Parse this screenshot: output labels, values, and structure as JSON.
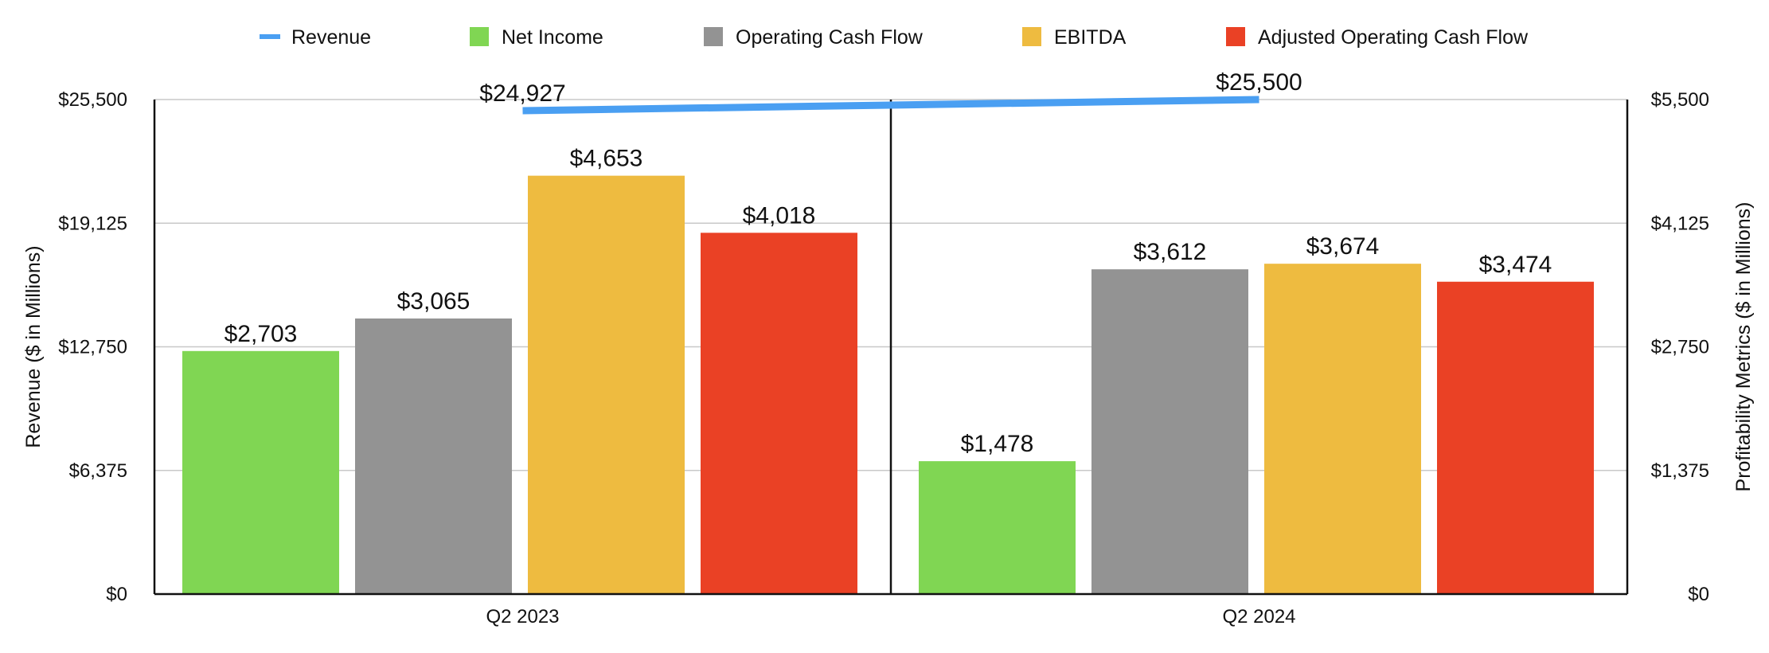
{
  "chart_data": {
    "type": "bar",
    "categories": [
      "Q2 2023",
      "Q2 2024"
    ],
    "series": [
      {
        "name": "Revenue",
        "kind": "line",
        "axis": "left",
        "color": "#4a9ff2",
        "values": [
          24927,
          25500
        ],
        "labels": [
          "$24,927",
          "$25,500"
        ]
      },
      {
        "name": "Net Income",
        "kind": "bar",
        "axis": "right",
        "color": "#80d653",
        "values": [
          2703,
          1478
        ],
        "labels": [
          "$2,703",
          "$1,478"
        ]
      },
      {
        "name": "Operating Cash Flow",
        "kind": "bar",
        "axis": "right",
        "color": "#939393",
        "values": [
          3065,
          3612
        ],
        "labels": [
          "$3,065",
          "$3,612"
        ]
      },
      {
        "name": "EBITDA",
        "kind": "bar",
        "axis": "right",
        "color": "#eebb40",
        "values": [
          4653,
          3674
        ],
        "labels": [
          "$4,653",
          "$3,674"
        ]
      },
      {
        "name": "Adjusted Operating Cash Flow",
        "kind": "bar",
        "axis": "right",
        "color": "#ea4125",
        "values": [
          4018,
          3474
        ],
        "labels": [
          "$4,018",
          "$3,474"
        ]
      }
    ],
    "left_axis": {
      "label": "Revenue ($ in Millions)",
      "ylim": [
        0,
        25500
      ],
      "ticks": [
        0,
        6375,
        12750,
        19125,
        25500
      ],
      "tick_labels": [
        "$0",
        "$6,375",
        "$12,750",
        "$19,125",
        "$25,500"
      ]
    },
    "right_axis": {
      "label": "Profitability Metrics ($ in Millions)",
      "ylim": [
        0,
        5500
      ],
      "ticks": [
        0,
        1375,
        2750,
        4125,
        5500
      ],
      "tick_labels": [
        "$0",
        "$1,375",
        "$2,750",
        "$4,125",
        "$5,500"
      ]
    },
    "legend": "top",
    "grid": true
  }
}
